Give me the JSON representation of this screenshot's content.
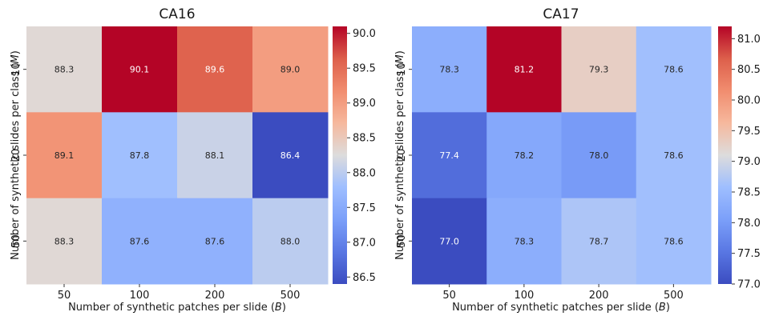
{
  "chart_data": [
    {
      "type": "heatmap",
      "title": "CA16",
      "xlabel": "Number of synthetic patches per slide",
      "xlabel_var": "B",
      "ylabel": "Number of synthetic slides per class",
      "ylabel_var": "M",
      "x_categories": [
        "50",
        "100",
        "200",
        "500"
      ],
      "y_categories": [
        "10",
        "20",
        "50"
      ],
      "values": [
        [
          88.3,
          90.1,
          89.6,
          89.0
        ],
        [
          89.1,
          87.8,
          88.1,
          86.4
        ],
        [
          88.3,
          87.6,
          87.6,
          88.0
        ]
      ],
      "labels": [
        [
          "88.3",
          "90.1",
          "89.6",
          "89.0"
        ],
        [
          "89.1",
          "87.8",
          "88.1",
          "86.4"
        ],
        [
          "88.3",
          "87.6",
          "87.6",
          "88.0"
        ]
      ],
      "colorbar": {
        "colormap": "coolwarm",
        "vmin": 86.4,
        "vmax": 90.1,
        "ticks": [
          "86.5",
          "87.0",
          "87.5",
          "88.0",
          "88.5",
          "89.0",
          "89.5",
          "90.0"
        ]
      }
    },
    {
      "type": "heatmap",
      "title": "CA17",
      "xlabel": "Number of synthetic patches per slide",
      "xlabel_var": "B",
      "ylabel": "Number of synthetic slides per class",
      "ylabel_var": "M",
      "x_categories": [
        "50",
        "100",
        "200",
        "500"
      ],
      "y_categories": [
        "10",
        "20",
        "50"
      ],
      "values": [
        [
          78.3,
          81.2,
          79.3,
          78.6
        ],
        [
          77.4,
          78.2,
          78.0,
          78.6
        ],
        [
          77.0,
          78.3,
          78.7,
          78.6
        ]
      ],
      "labels": [
        [
          "78.3",
          "81.2",
          "79.3",
          "78.6"
        ],
        [
          "77.4",
          "78.2",
          "78.0",
          "78.6"
        ],
        [
          "77.0",
          "78.3",
          "78.7",
          "78.6"
        ]
      ],
      "colorbar": {
        "colormap": "coolwarm",
        "vmin": 77.0,
        "vmax": 81.2,
        "ticks": [
          "77.0",
          "77.5",
          "78.0",
          "78.5",
          "79.0",
          "79.5",
          "80.0",
          "80.5",
          "81.0"
        ]
      }
    }
  ]
}
